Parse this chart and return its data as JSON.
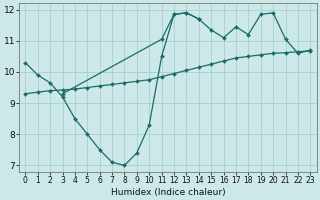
{
  "xlabel": "Humidex (Indice chaleur)",
  "background_color": "#cce8e8",
  "grid_color": "#aacece",
  "line_color": "#1a6b6b",
  "xlim": [
    -0.5,
    23.5
  ],
  "ylim": [
    6.8,
    12.2
  ],
  "yticks": [
    7,
    8,
    9,
    10,
    11,
    12
  ],
  "xticks": [
    0,
    1,
    2,
    3,
    4,
    5,
    6,
    7,
    8,
    9,
    10,
    11,
    12,
    13,
    14,
    15,
    16,
    17,
    18,
    19,
    20,
    21,
    22,
    23
  ],
  "line1_x": [
    0,
    1,
    2,
    3,
    4,
    5,
    6,
    7,
    8,
    9,
    10,
    11,
    12,
    13,
    14
  ],
  "line1_y": [
    10.3,
    9.9,
    9.65,
    9.2,
    8.5,
    8.0,
    7.5,
    7.1,
    7.0,
    7.4,
    8.3,
    10.5,
    11.85,
    11.9,
    11.7
  ],
  "line2_x": [
    0,
    1,
    2,
    3,
    4,
    5,
    6,
    7,
    8,
    9,
    10,
    11,
    12,
    13,
    14,
    15,
    16,
    17,
    18,
    19,
    20,
    21,
    22,
    23
  ],
  "line2_y": [
    9.3,
    9.35,
    9.4,
    9.42,
    9.45,
    9.5,
    9.55,
    9.6,
    9.65,
    9.7,
    9.75,
    9.85,
    9.95,
    10.05,
    10.15,
    10.25,
    10.35,
    10.45,
    10.5,
    10.55,
    10.6,
    10.62,
    10.65,
    10.68
  ],
  "line3_x": [
    3,
    11,
    12,
    13,
    14,
    15,
    16,
    17,
    18,
    19,
    20,
    21,
    22,
    23
  ],
  "line3_y": [
    9.3,
    11.05,
    11.85,
    11.9,
    11.7,
    11.35,
    11.1,
    11.45,
    11.2,
    11.85,
    11.9,
    11.05,
    10.6,
    10.7
  ]
}
